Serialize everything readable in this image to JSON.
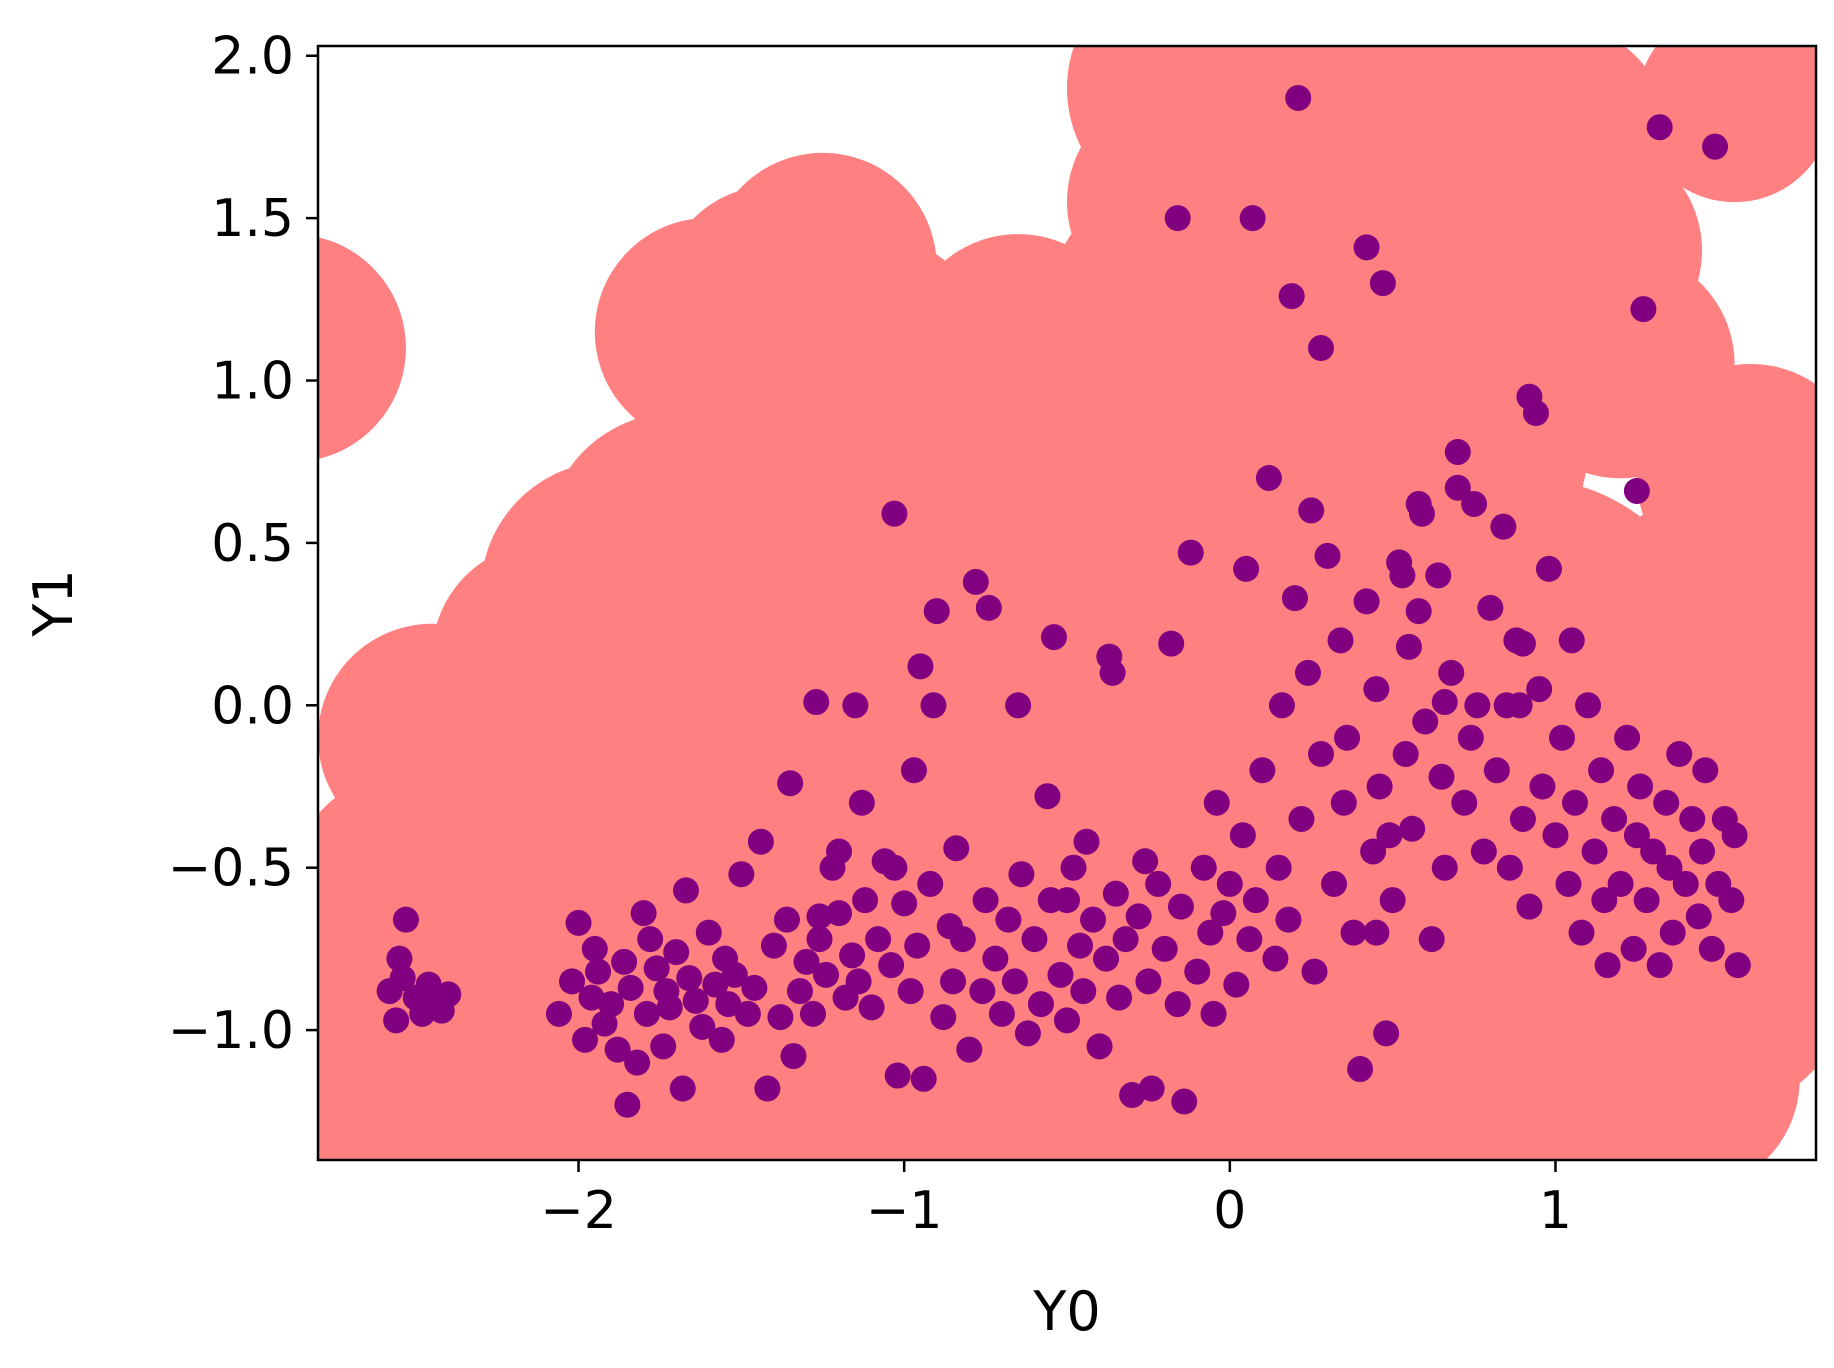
{
  "chart_data": {
    "type": "scatter",
    "xlabel": "Y0",
    "ylabel": "Y1",
    "xlim": [
      -2.8,
      1.8
    ],
    "ylim": [
      -1.4,
      2.03
    ],
    "xticks": [
      {
        "value": -2,
        "label": "−2"
      },
      {
        "value": -1,
        "label": "−1"
      },
      {
        "value": 0,
        "label": "0"
      },
      {
        "value": 1,
        "label": "1"
      }
    ],
    "yticks": [
      {
        "value": -1.0,
        "label": "−1.0"
      },
      {
        "value": -0.5,
        "label": "−0.5"
      },
      {
        "value": 0.0,
        "label": "0.0"
      },
      {
        "value": 0.5,
        "label": "0.5"
      },
      {
        "value": 1.0,
        "label": "1.0"
      },
      {
        "value": 1.5,
        "label": "1.5"
      },
      {
        "value": 2.0,
        "label": "2.0"
      }
    ],
    "colors": {
      "points": "#800080",
      "region": "#ff8080"
    },
    "region_circles": [
      {
        "x": -2.88,
        "y": 1.1,
        "r": 0.35
      },
      {
        "x": -2.45,
        "y": -0.1,
        "r": 0.35
      },
      {
        "x": -2.5,
        "y": -0.6,
        "r": 0.4
      },
      {
        "x": -2.6,
        "y": -1.1,
        "r": 0.4
      },
      {
        "x": -2.1,
        "y": 0.15,
        "r": 0.35
      },
      {
        "x": -1.9,
        "y": 0.35,
        "r": 0.4
      },
      {
        "x": -1.7,
        "y": 0.5,
        "r": 0.4
      },
      {
        "x": -1.5,
        "y": 0.65,
        "r": 0.4
      },
      {
        "x": -1.6,
        "y": 1.15,
        "r": 0.35
      },
      {
        "x": -1.4,
        "y": 1.25,
        "r": 0.35
      },
      {
        "x": -1.25,
        "y": 1.35,
        "r": 0.35
      },
      {
        "x": -1.1,
        "y": 1.1,
        "r": 0.35
      },
      {
        "x": -0.65,
        "y": 1.1,
        "r": 0.35
      },
      {
        "x": -0.6,
        "y": 0.9,
        "r": 0.4
      },
      {
        "x": -1.2,
        "y": 0.5,
        "r": 0.45
      },
      {
        "x": -0.7,
        "y": 0.4,
        "r": 0.5
      },
      {
        "x": -0.2,
        "y": 1.25,
        "r": 0.35
      },
      {
        "x": -0.15,
        "y": 1.55,
        "r": 0.35
      },
      {
        "x": -0.1,
        "y": 1.9,
        "r": 0.4
      },
      {
        "x": 0.3,
        "y": 1.9,
        "r": 0.4
      },
      {
        "x": 0.7,
        "y": 1.95,
        "r": 0.4
      },
      {
        "x": 1.0,
        "y": 1.75,
        "r": 0.35
      },
      {
        "x": 1.1,
        "y": 1.4,
        "r": 0.35
      },
      {
        "x": 1.2,
        "y": 1.05,
        "r": 0.35
      },
      {
        "x": 1.55,
        "y": 1.85,
        "r": 0.3
      },
      {
        "x": 1.6,
        "y": 0.7,
        "r": 0.35
      },
      {
        "x": 1.5,
        "y": 0.2,
        "r": 0.45
      },
      {
        "x": 1.55,
        "y": -0.3,
        "r": 0.45
      },
      {
        "x": 1.5,
        "y": -0.85,
        "r": 0.4
      },
      {
        "x": 1.4,
        "y": -1.15,
        "r": 0.35
      },
      {
        "x": 0.2,
        "y": 0.8,
        "r": 0.5
      },
      {
        "x": 0.6,
        "y": 0.8,
        "r": 0.5
      },
      {
        "x": 0.3,
        "y": 1.4,
        "r": 0.4
      },
      {
        "x": 0.7,
        "y": 1.4,
        "r": 0.4
      },
      {
        "x": -2.0,
        "y": -0.4,
        "r": 0.5
      },
      {
        "x": -1.5,
        "y": -0.3,
        "r": 0.55
      },
      {
        "x": -1.0,
        "y": -0.2,
        "r": 0.6
      },
      {
        "x": -0.4,
        "y": 0.0,
        "r": 0.6
      },
      {
        "x": 0.2,
        "y": 0.1,
        "r": 0.6
      },
      {
        "x": 0.9,
        "y": 0.1,
        "r": 0.6
      },
      {
        "x": -2.3,
        "y": -1.1,
        "r": 0.5
      },
      {
        "x": -1.8,
        "y": -1.15,
        "r": 0.5
      },
      {
        "x": -1.2,
        "y": -1.1,
        "r": 0.5
      },
      {
        "x": -0.6,
        "y": -1.1,
        "r": 0.5
      },
      {
        "x": 0.0,
        "y": -1.1,
        "r": 0.5
      },
      {
        "x": 0.6,
        "y": -1.1,
        "r": 0.5
      },
      {
        "x": 1.1,
        "y": -1.1,
        "r": 0.5
      },
      {
        "x": -1.5,
        "y": -0.8,
        "r": 0.5
      },
      {
        "x": -0.8,
        "y": -0.7,
        "r": 0.5
      },
      {
        "x": 0.0,
        "y": -0.5,
        "r": 0.5
      },
      {
        "x": 0.8,
        "y": -0.5,
        "r": 0.5
      }
    ],
    "points_x": [
      -2.58,
      -2.56,
      -2.55,
      -2.54,
      -2.53,
      -2.5,
      -2.48,
      -2.47,
      -2.46,
      -2.44,
      -2.42,
      -2.4,
      -2.06,
      -2.02,
      -2.0,
      -1.98,
      -1.96,
      -1.95,
      -1.94,
      -1.92,
      -1.9,
      -1.88,
      -1.86,
      -1.85,
      -1.84,
      -1.82,
      -1.8,
      -1.79,
      -1.78,
      -1.76,
      -1.74,
      -1.73,
      -1.72,
      -1.7,
      -1.68,
      -1.67,
      -1.66,
      -1.64,
      -1.62,
      -1.6,
      -1.58,
      -1.56,
      -1.55,
      -1.54,
      -1.52,
      -1.5,
      -1.48,
      -1.46,
      -1.44,
      -1.42,
      -1.4,
      -1.38,
      -1.36,
      -1.35,
      -1.34,
      -1.32,
      -1.3,
      -1.28,
      -1.27,
      -1.26,
      -1.24,
      -1.22,
      -1.2,
      -1.18,
      -1.16,
      -1.15,
      -1.14,
      -1.12,
      -1.1,
      -1.08,
      -1.06,
      -1.04,
      -1.03,
      -1.02,
      -1.0,
      -0.98,
      -0.97,
      -0.96,
      -0.95,
      -0.94,
      -0.92,
      -0.9,
      -0.88,
      -0.86,
      -0.85,
      -0.84,
      -0.82,
      -0.8,
      -0.78,
      -0.76,
      -0.75,
      -0.74,
      -0.72,
      -0.7,
      -0.68,
      -0.66,
      -0.65,
      -0.64,
      -0.62,
      -0.6,
      -0.58,
      -0.56,
      -0.55,
      -0.54,
      -0.52,
      -0.5,
      -0.48,
      -0.46,
      -0.45,
      -0.44,
      -0.42,
      -0.4,
      -0.38,
      -0.36,
      -0.35,
      -0.34,
      -0.32,
      -0.3,
      -0.28,
      -0.26,
      -0.25,
      -0.24,
      -0.22,
      -0.2,
      -0.18,
      -0.16,
      -0.15,
      -0.14,
      -0.12,
      -0.1,
      -0.08,
      -0.06,
      -0.05,
      -0.04,
      -0.02,
      0.0,
      0.02,
      0.04,
      0.05,
      0.06,
      0.08,
      0.1,
      0.12,
      0.14,
      0.15,
      0.16,
      0.18,
      0.2,
      0.22,
      0.24,
      0.25,
      0.26,
      0.28,
      0.3,
      0.32,
      0.34,
      0.35,
      0.36,
      0.38,
      0.4,
      0.42,
      0.44,
      0.45,
      0.46,
      0.48,
      0.5,
      0.52,
      0.54,
      0.55,
      0.56,
      0.58,
      0.6,
      0.62,
      0.64,
      0.65,
      0.66,
      0.68,
      0.7,
      0.72,
      0.74,
      0.75,
      0.76,
      0.78,
      0.8,
      0.82,
      0.84,
      0.85,
      0.86,
      0.88,
      0.9,
      0.92,
      0.94,
      0.95,
      0.96,
      0.98,
      1.0,
      1.02,
      1.04,
      1.05,
      1.06,
      1.08,
      1.1,
      1.12,
      1.14,
      1.15,
      1.16,
      1.18,
      1.2,
      1.22,
      1.24,
      1.25,
      1.26,
      1.28,
      1.3,
      1.32,
      1.34,
      1.35,
      1.36,
      1.38,
      1.4,
      1.42,
      1.44,
      1.45,
      1.46,
      1.48,
      1.5,
      1.52,
      1.54,
      1.55,
      1.56,
      -1.03,
      -1.13,
      -1.26,
      -1.2,
      -0.91,
      -0.5,
      -0.37,
      0.45,
      0.49,
      0.59,
      0.66,
      0.89,
      0.9,
      0.58,
      0.53,
      1.25,
      1.32,
      1.49,
      0.21,
      0.07,
      -0.16,
      0.19,
      0.42,
      0.47,
      1.27,
      0.7,
      0.92,
      0.28
    ],
    "points_y": [
      -0.88,
      -0.97,
      -0.78,
      -0.84,
      -0.66,
      -0.9,
      -0.95,
      -0.93,
      -0.86,
      -0.91,
      -0.94,
      -0.89,
      -0.95,
      -0.85,
      -0.67,
      -1.03,
      -0.9,
      -0.75,
      -0.82,
      -0.98,
      -0.92,
      -1.06,
      -0.79,
      -1.23,
      -0.87,
      -1.1,
      -0.64,
      -0.95,
      -0.72,
      -0.81,
      -1.05,
      -0.88,
      -0.93,
      -0.76,
      -1.18,
      -0.57,
      -0.84,
      -0.91,
      -0.99,
      -0.7,
      -0.86,
      -1.03,
      -0.78,
      -0.92,
      -0.83,
      -0.52,
      -0.95,
      -0.87,
      -0.42,
      -1.18,
      -0.74,
      -0.96,
      -0.66,
      -0.24,
      -1.08,
      -0.88,
      -0.79,
      -0.95,
      0.01,
      -0.72,
      -0.83,
      -0.5,
      -0.64,
      -0.9,
      -0.77,
      0.0,
      -0.85,
      -0.6,
      -0.93,
      -0.72,
      -0.48,
      -0.8,
      0.59,
      -1.14,
      -0.61,
      -0.88,
      -0.2,
      -0.74,
      0.12,
      -1.15,
      -0.55,
      0.29,
      -0.96,
      -0.68,
      -0.85,
      -0.44,
      -0.72,
      -1.06,
      0.38,
      -0.88,
      -0.6,
      0.3,
      -0.78,
      -0.95,
      -0.66,
      -0.85,
      0.0,
      -0.52,
      -1.01,
      -0.72,
      -0.92,
      -0.28,
      -0.6,
      0.21,
      -0.83,
      -0.97,
      -0.5,
      -0.74,
      -0.88,
      -0.42,
      -0.66,
      -1.05,
      -0.78,
      0.1,
      -0.58,
      -0.9,
      -0.72,
      -1.2,
      -0.65,
      -0.48,
      -0.85,
      -1.18,
      -0.55,
      -0.75,
      0.19,
      -0.92,
      -0.62,
      -1.22,
      0.47,
      -0.82,
      -0.5,
      -0.7,
      -0.95,
      -0.3,
      -0.64,
      -0.55,
      -0.86,
      -0.4,
      0.42,
      -0.72,
      -0.6,
      -0.2,
      0.7,
      -0.78,
      -0.5,
      0.0,
      -0.66,
      0.33,
      -0.35,
      0.1,
      0.6,
      -0.82,
      -0.15,
      0.46,
      -0.55,
      0.2,
      -0.3,
      -0.1,
      -0.7,
      -1.12,
      0.32,
      -0.45,
      0.05,
      -0.25,
      -1.01,
      -0.6,
      0.44,
      -0.15,
      0.18,
      -0.38,
      0.62,
      -0.05,
      -0.72,
      0.4,
      -0.22,
      -0.5,
      0.1,
      0.78,
      -0.3,
      -0.1,
      0.62,
      0.0,
      -0.45,
      0.3,
      -0.2,
      0.55,
      0.0,
      -0.5,
      0.2,
      -0.35,
      -0.62,
      0.9,
      0.05,
      -0.25,
      0.42,
      -0.4,
      -0.1,
      -0.55,
      0.2,
      -0.3,
      -0.7,
      0.0,
      -0.45,
      -0.2,
      -0.6,
      -0.8,
      -0.35,
      -0.55,
      -0.1,
      -0.75,
      -0.4,
      -0.25,
      -0.6,
      -0.45,
      -0.8,
      -0.3,
      -0.5,
      -0.7,
      -0.15,
      -0.55,
      -0.35,
      -0.65,
      -0.45,
      -0.2,
      -0.75,
      -0.55,
      -0.35,
      -0.6,
      -0.4,
      -0.8,
      -0.5,
      -0.3,
      -0.65,
      -0.45,
      0.0,
      -0.6,
      0.15,
      -0.7,
      -0.4,
      0.59,
      0.01,
      0.0,
      0.19,
      0.29,
      0.4,
      0.66,
      1.78,
      1.72,
      1.87,
      1.5,
      1.5,
      1.26,
      1.41,
      1.3,
      1.22,
      0.67,
      0.95,
      1.1,
      0.91,
      1.04,
      -0.77,
      0.6,
      0.96,
      -1.05,
      0.5,
      0.5,
      0.5
    ]
  }
}
